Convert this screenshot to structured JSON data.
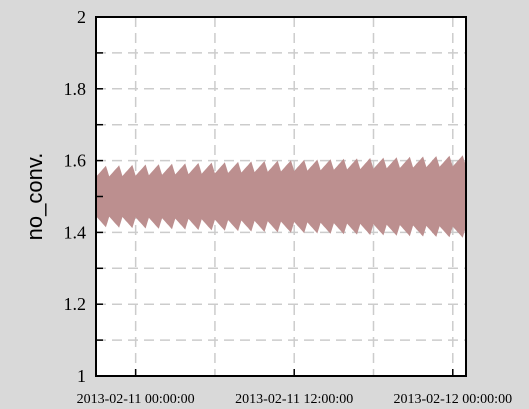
{
  "chart_data": {
    "type": "area",
    "title": "",
    "xlabel": "",
    "ylabel": "no_conv.",
    "ylim": [
      1,
      2
    ],
    "yticks": [
      1,
      1.2,
      1.4,
      1.6,
      1.8,
      2
    ],
    "ytick_labels": [
      "1",
      "1.2",
      "1.4",
      "1.6",
      "1.8",
      "2"
    ],
    "xlim": [
      "2013-02-10 21:00:00",
      "2013-02-12 01:00:00"
    ],
    "xticks": [
      "2013-02-11 00:00:00",
      "2013-02-11 12:00:00",
      "2013-02-12 00:00:00"
    ],
    "xtick_labels": [
      "2013-02-11 00:00:00",
      "2013-02-11 12:00:00",
      "2013-02-12 00:00:00"
    ],
    "grid": true,
    "band_color": "#bc8f8f",
    "background_color": "#d9d9d9",
    "plot_background_color": "#ffffff",
    "series": [
      {
        "x_start": "2013-02-10 21:00:00",
        "x_end": "2013-02-12 01:00:00",
        "upper_start": 1.57,
        "upper_end": 1.6,
        "lower_start": 1.43,
        "lower_end": 1.4,
        "oscillation_amplitude": 0.015,
        "oscillation_period_hours": 1
      }
    ]
  }
}
